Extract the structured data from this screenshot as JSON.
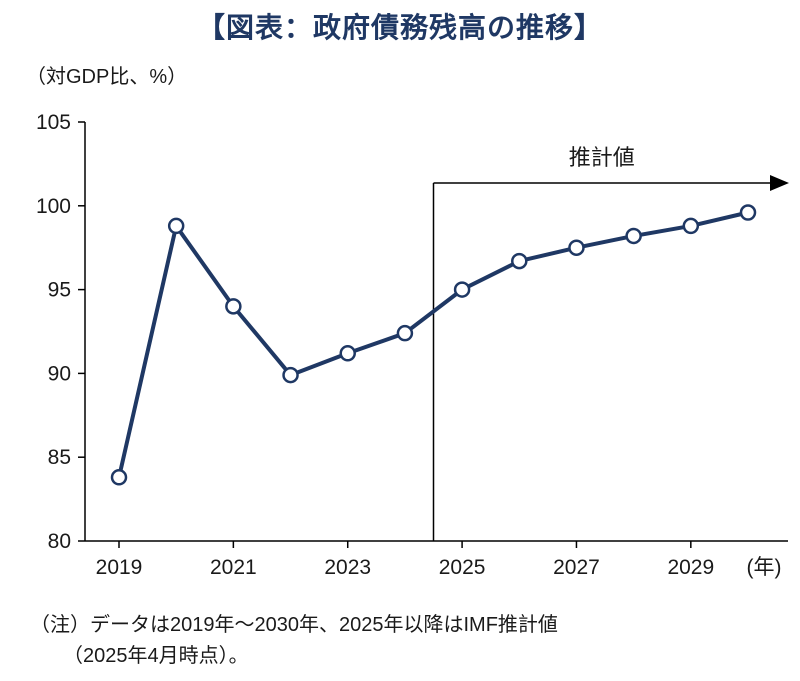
{
  "title": "【図表：政府債務残高の推移】",
  "y_axis_unit_label": "（対GDP比、%）",
  "note": {
    "line1": "（注）データは2019年～2030年、2025年以降はIMF推計値",
    "line2": "（2025年4月時点）。"
  },
  "colors": {
    "line": "#1F3864",
    "marker_fill": "#FFFFFF",
    "title": "#1F3864",
    "axis": "#000000",
    "text": "#1A1A1A"
  },
  "chart_data": {
    "type": "line",
    "title": "政府債務残高の推移",
    "ylabel": "対GDP比、%",
    "xlabel_suffix": "(年)",
    "x": [
      2019,
      2020,
      2021,
      2022,
      2023,
      2024,
      2025,
      2026,
      2027,
      2028,
      2029,
      2030
    ],
    "values": [
      83.8,
      98.8,
      94.0,
      89.9,
      91.2,
      92.4,
      95.0,
      96.7,
      97.5,
      98.2,
      98.8,
      99.6
    ],
    "ylim": [
      80,
      105
    ],
    "yticks": [
      80,
      85,
      90,
      95,
      100,
      105
    ],
    "xticks": [
      2019,
      2021,
      2023,
      2025,
      2027,
      2029
    ],
    "estimate_start_year": 2025,
    "annotation": "推計値",
    "grid": false,
    "legend": "none"
  }
}
